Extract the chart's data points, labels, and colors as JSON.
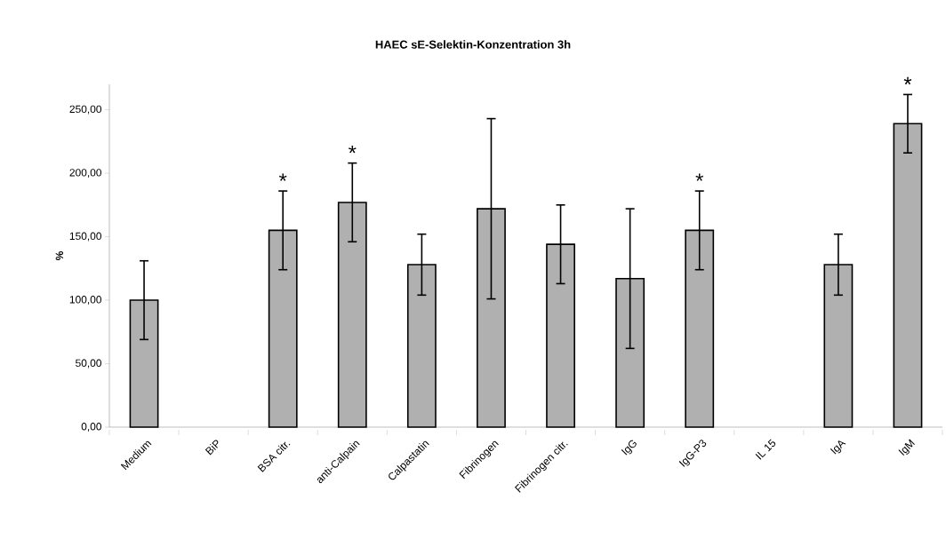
{
  "chart_data": {
    "type": "bar",
    "title": "HAEC sE-Selektin-Konzentration 3h",
    "ylabel": "%",
    "categories": [
      "Medium",
      "BiP",
      "BSA citr.",
      "anti-Calpain",
      "Calpastatin",
      "Fibrinogen",
      "Fibrinogen citr.",
      "IgG",
      "IgG-P3",
      "IL 15",
      "IgA",
      "IgM"
    ],
    "values": [
      100,
      null,
      155,
      177,
      128,
      172,
      144,
      117,
      155,
      null,
      128,
      239
    ],
    "errors": [
      31,
      null,
      31,
      31,
      24,
      71,
      31,
      55,
      31,
      null,
      24,
      23
    ],
    "color": "#b0b0b0",
    "value_labels": [
      null,
      null,
      "*",
      "*",
      null,
      null,
      null,
      null,
      "*",
      null,
      null,
      "*"
    ],
    "ylim": [
      0,
      270
    ],
    "yticks": [
      {
        "value": 0,
        "label": "0,00"
      },
      {
        "value": 50,
        "label": "50,00"
      },
      {
        "value": 100,
        "label": "100,00"
      },
      {
        "value": 150,
        "label": "150,00"
      },
      {
        "value": 200,
        "label": "200,00"
      },
      {
        "value": 250,
        "label": "250,00"
      }
    ],
    "grid": false
  }
}
